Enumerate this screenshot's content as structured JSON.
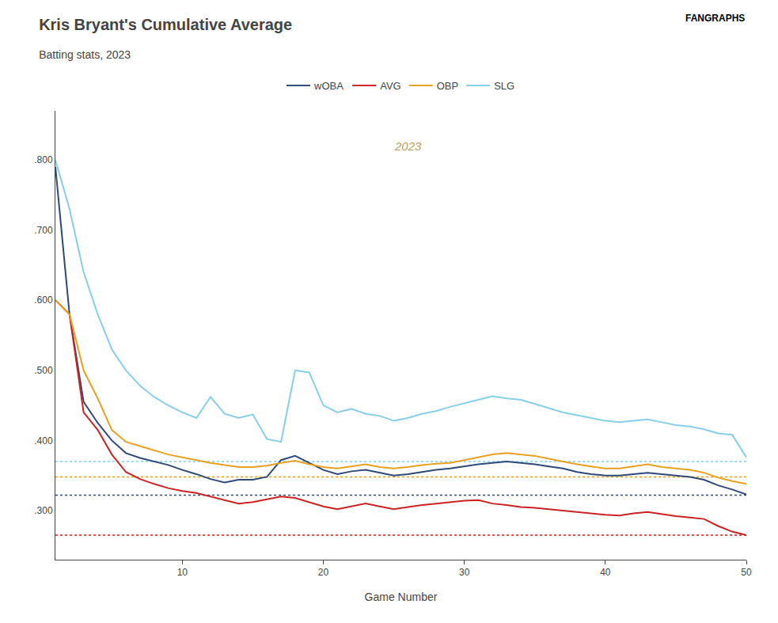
{
  "chart_data": {
    "type": "line",
    "title": "Kris Bryant's Cumulative Average",
    "subtitle": "Batting stats, 2023",
    "xlabel": "Game Number",
    "x": [
      1,
      2,
      3,
      4,
      5,
      6,
      7,
      8,
      9,
      10,
      11,
      12,
      13,
      14,
      15,
      16,
      17,
      18,
      19,
      20,
      21,
      22,
      23,
      24,
      25,
      26,
      27,
      28,
      29,
      30,
      31,
      32,
      33,
      34,
      35,
      36,
      37,
      38,
      39,
      40,
      41,
      42,
      43,
      44,
      45,
      46,
      47,
      48,
      49,
      50
    ],
    "xlim": [
      1,
      50
    ],
    "xticks": [
      10,
      20,
      30,
      40,
      50
    ],
    "ylim": [
      0.23,
      0.87
    ],
    "yticks": [
      {
        "value": 0.3,
        "label": ".300"
      },
      {
        "value": 0.4,
        "label": ".400"
      },
      {
        "value": 0.5,
        "label": ".500"
      },
      {
        "value": 0.6,
        "label": ".600"
      },
      {
        "value": 0.7,
        "label": ".700"
      },
      {
        "value": 0.8,
        "label": ".800"
      }
    ],
    "grid": false,
    "legend": "top",
    "background_color": "#ffffff",
    "annotations": [
      {
        "text": "2023",
        "x": 26,
        "y": 0.82,
        "color": "#b8a060"
      },
      {
        "text": "FANGRAPHS"
      }
    ],
    "series": [
      {
        "name": "wOBA",
        "color": "#2e4a7a",
        "reference_line": 0.322,
        "values": [
          0.79,
          0.58,
          0.455,
          0.425,
          0.4,
          0.382,
          0.375,
          0.37,
          0.365,
          0.358,
          0.352,
          0.345,
          0.34,
          0.344,
          0.344,
          0.348,
          0.372,
          0.378,
          0.368,
          0.358,
          0.352,
          0.356,
          0.358,
          0.354,
          0.35,
          0.352,
          0.355,
          0.358,
          0.36,
          0.363,
          0.366,
          0.368,
          0.37,
          0.368,
          0.366,
          0.363,
          0.36,
          0.355,
          0.352,
          0.35,
          0.35,
          0.352,
          0.354,
          0.352,
          0.35,
          0.348,
          0.344,
          0.336,
          0.33,
          0.323
        ]
      },
      {
        "name": "AVG",
        "color": "#cc2222",
        "reference_line": 0.265,
        "values": [
          0.6,
          0.58,
          0.44,
          0.415,
          0.38,
          0.355,
          0.345,
          0.338,
          0.332,
          0.328,
          0.325,
          0.32,
          0.315,
          0.31,
          0.312,
          0.316,
          0.32,
          0.318,
          0.312,
          0.306,
          0.302,
          0.306,
          0.31,
          0.306,
          0.302,
          0.305,
          0.308,
          0.31,
          0.312,
          0.314,
          0.315,
          0.31,
          0.308,
          0.305,
          0.304,
          0.302,
          0.3,
          0.298,
          0.296,
          0.294,
          0.293,
          0.296,
          0.298,
          0.295,
          0.292,
          0.29,
          0.288,
          0.278,
          0.27,
          0.265
        ]
      },
      {
        "name": "OBP",
        "color": "#e8a020",
        "reference_line": 0.348,
        "values": [
          0.6,
          0.58,
          0.5,
          0.46,
          0.415,
          0.398,
          0.392,
          0.386,
          0.38,
          0.376,
          0.372,
          0.368,
          0.365,
          0.362,
          0.362,
          0.364,
          0.368,
          0.371,
          0.366,
          0.362,
          0.36,
          0.363,
          0.366,
          0.362,
          0.36,
          0.362,
          0.365,
          0.367,
          0.368,
          0.372,
          0.376,
          0.38,
          0.382,
          0.38,
          0.378,
          0.374,
          0.37,
          0.366,
          0.363,
          0.36,
          0.36,
          0.363,
          0.366,
          0.362,
          0.36,
          0.358,
          0.354,
          0.347,
          0.342,
          0.338
        ]
      },
      {
        "name": "SLG",
        "color": "#87ceeb",
        "reference_line": 0.37,
        "values": [
          0.8,
          0.73,
          0.64,
          0.58,
          0.53,
          0.5,
          0.478,
          0.462,
          0.45,
          0.44,
          0.432,
          0.462,
          0.438,
          0.432,
          0.437,
          0.402,
          0.398,
          0.5,
          0.497,
          0.45,
          0.44,
          0.445,
          0.438,
          0.435,
          0.428,
          0.432,
          0.438,
          0.442,
          0.448,
          0.453,
          0.458,
          0.463,
          0.46,
          0.458,
          0.452,
          0.446,
          0.44,
          0.436,
          0.432,
          0.428,
          0.426,
          0.428,
          0.43,
          0.426,
          0.422,
          0.42,
          0.416,
          0.41,
          0.408,
          0.376
        ]
      }
    ]
  }
}
